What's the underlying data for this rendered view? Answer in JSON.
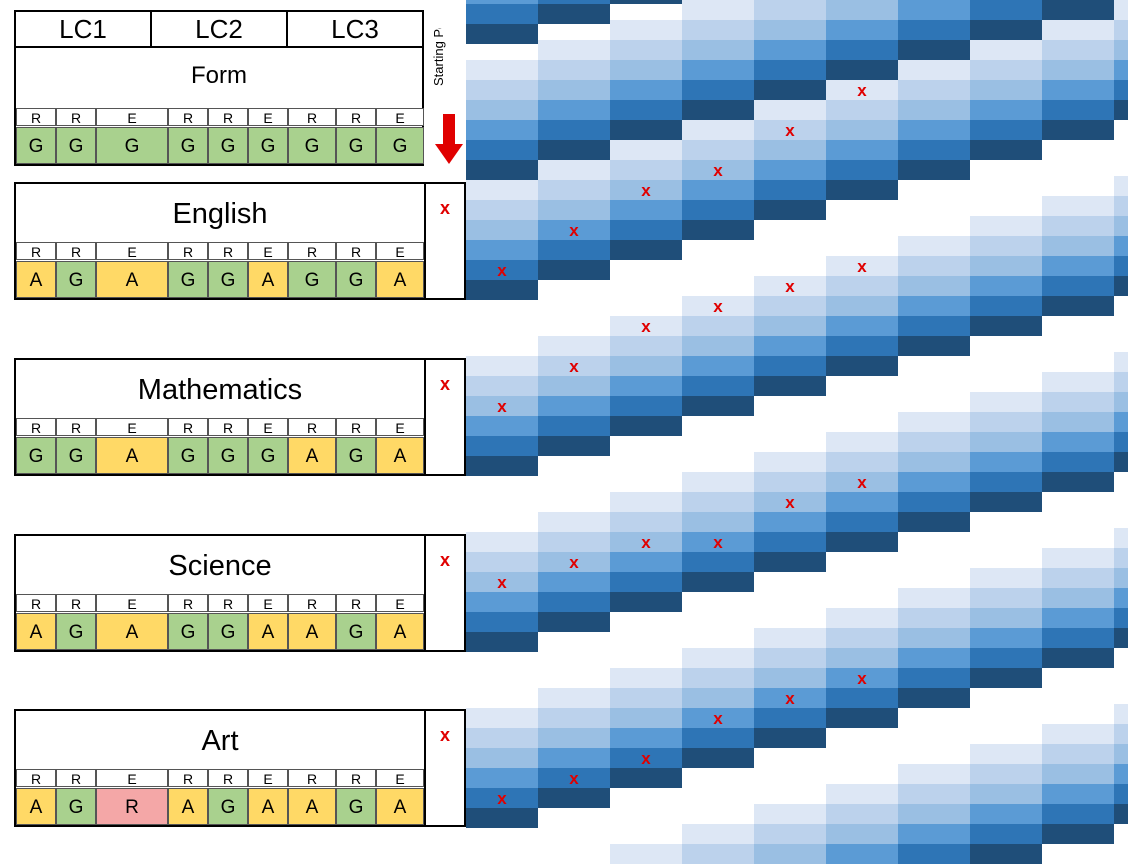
{
  "header": {
    "lc_labels": [
      "LC1",
      "LC2",
      "LC3"
    ],
    "form_title": "Form",
    "form_rre": [
      "R",
      "R",
      "E",
      "R",
      "R",
      "E",
      "R",
      "R",
      "E"
    ],
    "form_grades": [
      "G",
      "G",
      "G",
      "G",
      "G",
      "G",
      "G",
      "G",
      "G"
    ],
    "starting_point_label": "Starting Point"
  },
  "subjects": [
    {
      "title": "English",
      "marker": "x",
      "rre": [
        "R",
        "R",
        "E",
        "R",
        "R",
        "E",
        "R",
        "R",
        "E"
      ],
      "grades": [
        "A",
        "G",
        "A",
        "G",
        "G",
        "A",
        "G",
        "G",
        "A"
      ]
    },
    {
      "title": "Mathematics",
      "marker": "x",
      "rre": [
        "R",
        "R",
        "E",
        "R",
        "R",
        "E",
        "R",
        "R",
        "E"
      ],
      "grades": [
        "G",
        "G",
        "A",
        "G",
        "G",
        "G",
        "A",
        "G",
        "A"
      ]
    },
    {
      "title": "Science",
      "marker": "x",
      "rre": [
        "R",
        "R",
        "E",
        "R",
        "R",
        "E",
        "R",
        "R",
        "E"
      ],
      "grades": [
        "A",
        "G",
        "A",
        "G",
        "G",
        "A",
        "A",
        "G",
        "A"
      ]
    },
    {
      "title": "Art",
      "marker": "x",
      "rre": [
        "R",
        "R",
        "E",
        "R",
        "R",
        "E",
        "R",
        "R",
        "E"
      ],
      "grades": [
        "A",
        "G",
        "R",
        "A",
        "G",
        "A",
        "A",
        "G",
        "A"
      ]
    }
  ],
  "colors": {
    "green": "#a9d18e",
    "amber": "#ffd966",
    "red": "#f4a7a7",
    "marker": "#e00000",
    "arrow": "#e00000",
    "blue_shades": [
      "#dde7f5",
      "#bcd2ec",
      "#9abfe3",
      "#5b9bd5",
      "#2e75b6",
      "#1f4e79"
    ]
  },
  "marker_symbol": "x",
  "progress_markers": [
    [
      {
        "step": 0,
        "band": 4
      },
      {
        "step": 1,
        "band": 3
      },
      {
        "step": 2,
        "band": 2
      },
      {
        "step": 3,
        "band": 2
      },
      {
        "step": 4,
        "band": 1
      },
      {
        "step": 5,
        "band": 0
      }
    ],
    [
      {
        "step": 0,
        "band": 2
      },
      {
        "step": 1,
        "band": 1
      },
      {
        "step": 2,
        "band": 0
      },
      {
        "step": 3,
        "band": 0
      },
      {
        "step": 4,
        "band": 0
      },
      {
        "step": 5,
        "band": 0
      }
    ],
    [
      {
        "step": 0,
        "band": 2
      },
      {
        "step": 1,
        "band": 2
      },
      {
        "step": 2,
        "band": 2
      },
      {
        "step": 3,
        "band": 3
      },
      {
        "step": 4,
        "band": 2
      },
      {
        "step": 5,
        "band": 2
      }
    ],
    [
      {
        "step": 0,
        "band": 4
      },
      {
        "step": 1,
        "band": 4
      },
      {
        "step": 2,
        "band": 4
      },
      {
        "step": 3,
        "band": 3
      },
      {
        "step": 4,
        "band": 3
      },
      {
        "step": 5,
        "band": 3
      }
    ]
  ]
}
